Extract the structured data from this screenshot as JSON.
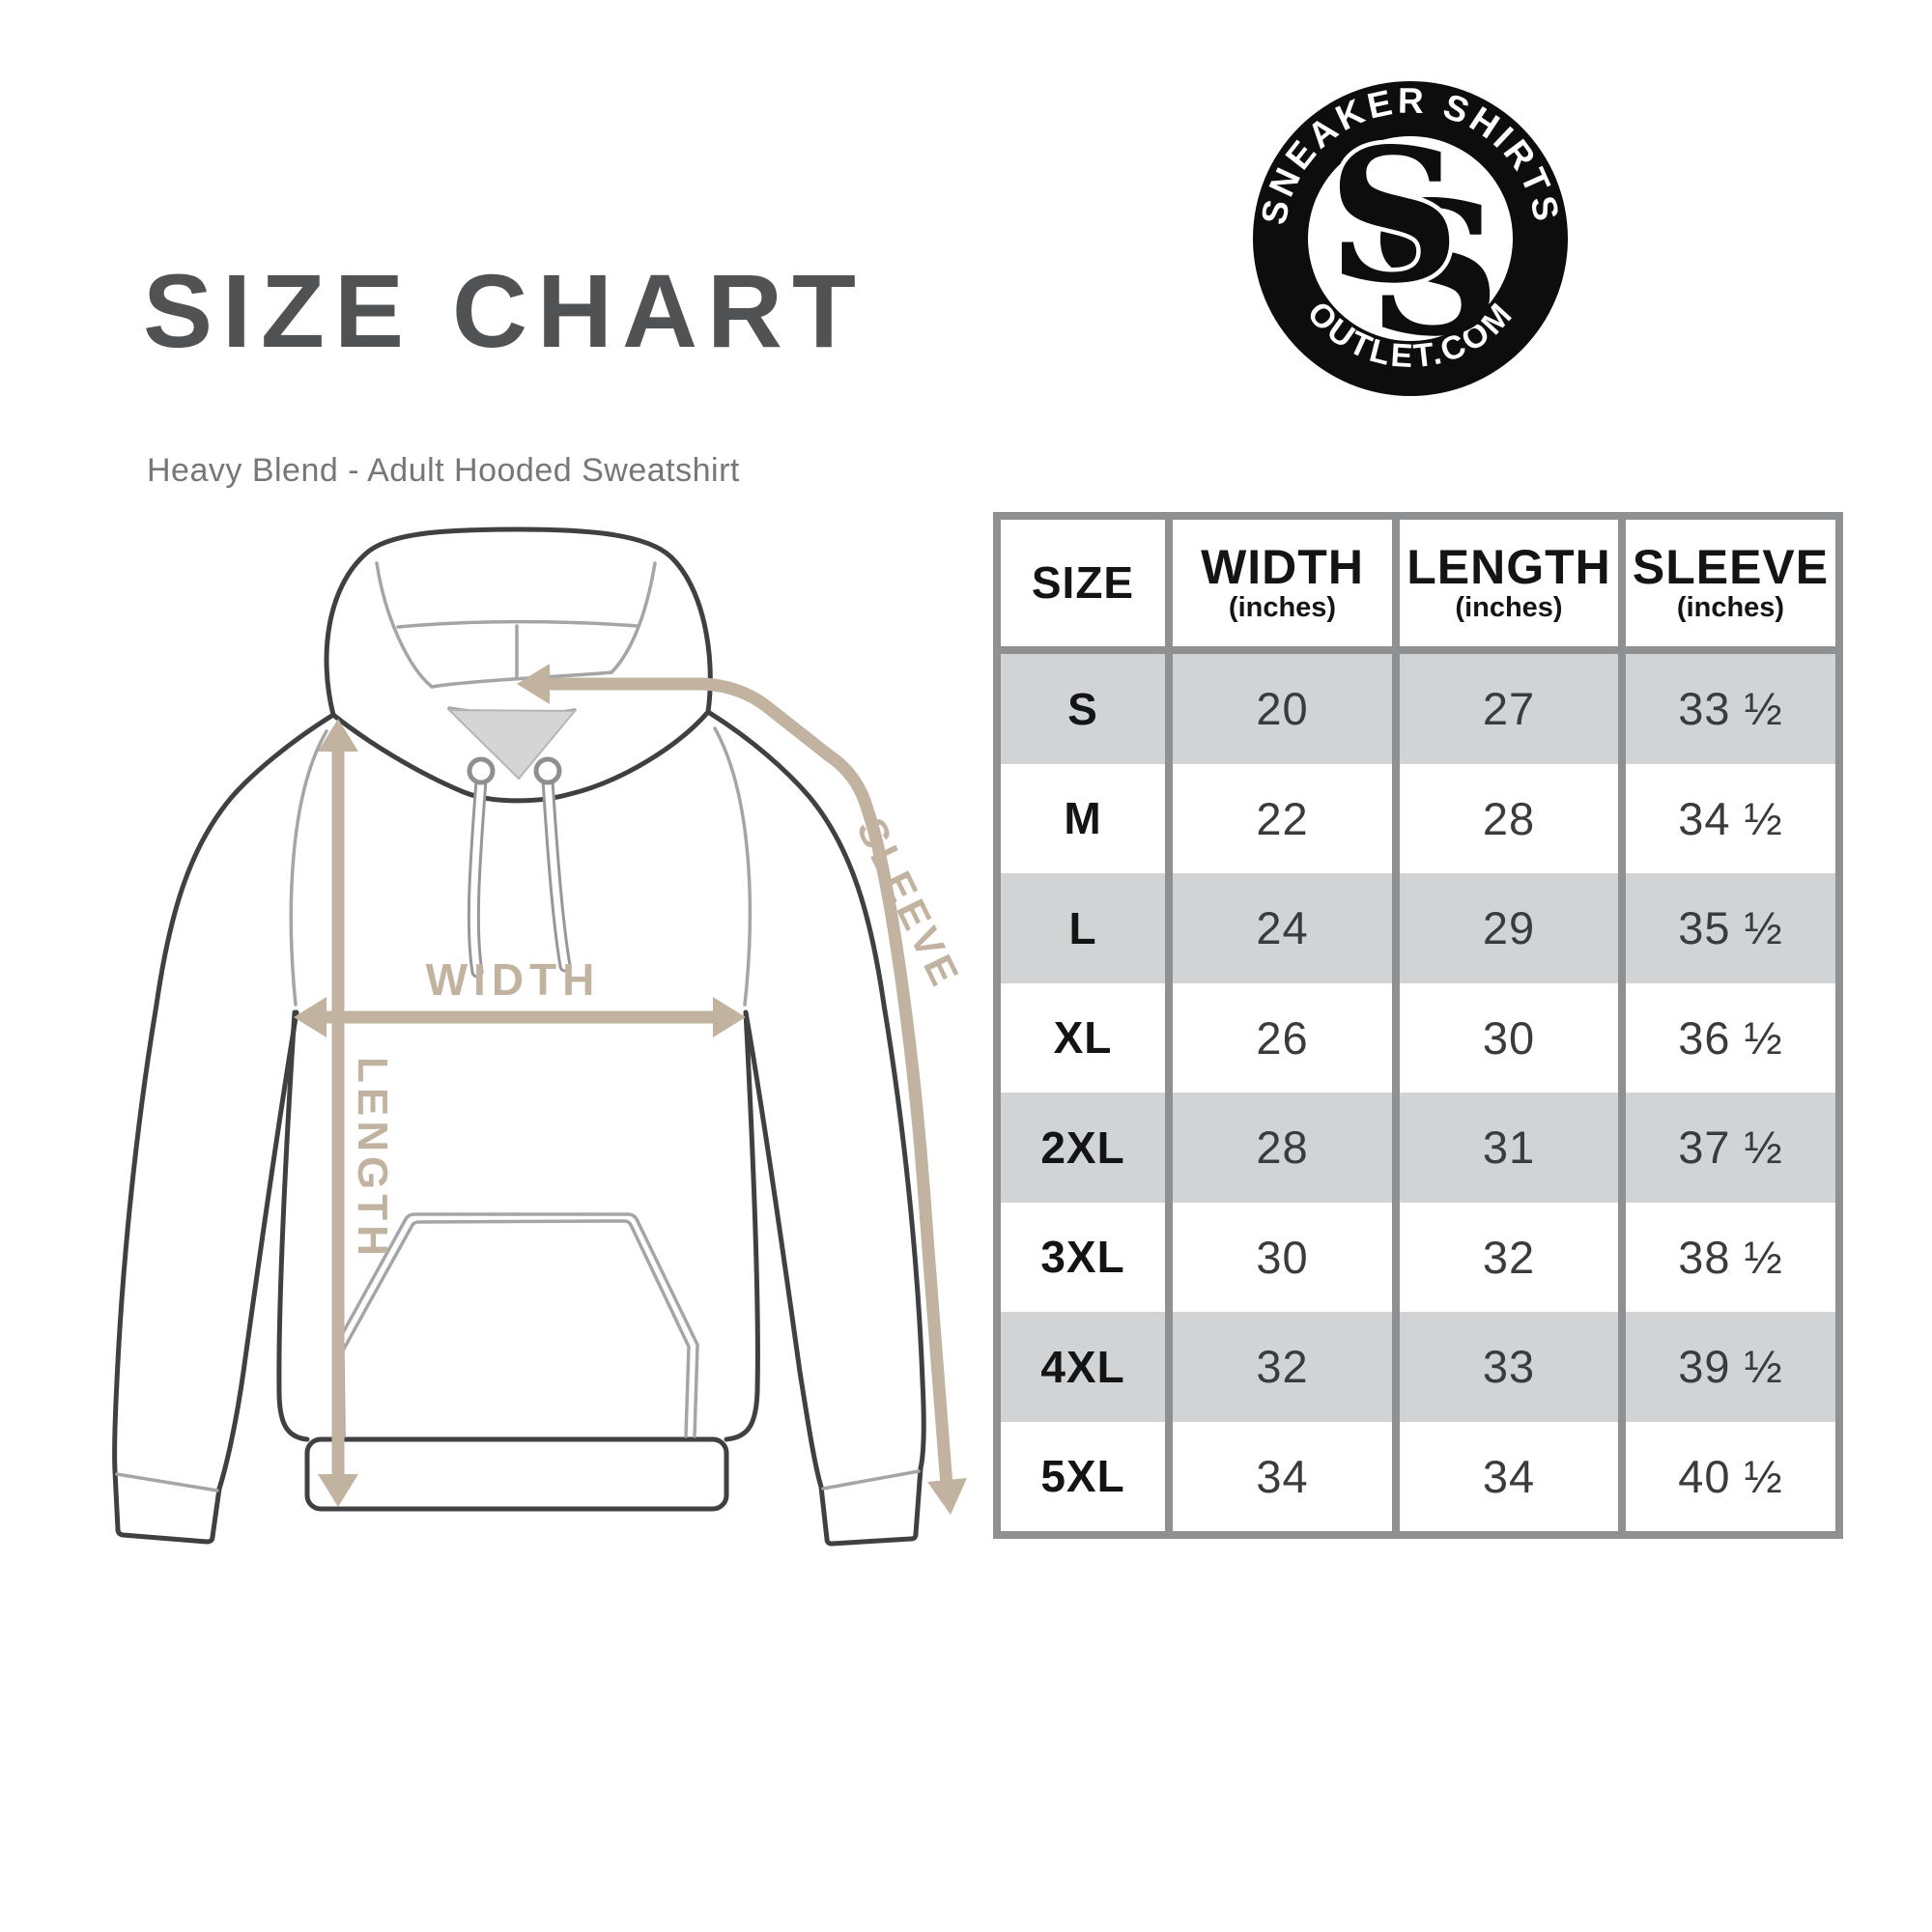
{
  "header": {
    "title": "SIZE CHART",
    "subtitle": "Heavy Blend - Adult Hooded Sweatshirt"
  },
  "logo": {
    "arc_top": "SNEAKER SHIRTS",
    "arc_bottom": "OUTLET.COM",
    "monogram_letter_1": "S",
    "monogram_letter_2": "S"
  },
  "diagram": {
    "arrow_color": "#c2b3a0",
    "labels": {
      "width": "WIDTH",
      "length": "LENGTH",
      "sleeve": "SLEEVE"
    }
  },
  "size_table": {
    "border_color": "#8e9092",
    "alt_row_color": "#d2d3d4",
    "columns": [
      {
        "label": "SIZE",
        "sub": ""
      },
      {
        "label": "WIDTH",
        "sub": "(inches)"
      },
      {
        "label": "LENGTH",
        "sub": "(inches)"
      },
      {
        "label": "SLEEVE",
        "sub": "(inches)"
      }
    ],
    "rows": [
      {
        "size": "S",
        "width": "20",
        "length": "27",
        "sleeve": "33 ½"
      },
      {
        "size": "M",
        "width": "22",
        "length": "28",
        "sleeve": "34 ½"
      },
      {
        "size": "L",
        "width": "24",
        "length": "29",
        "sleeve": "35 ½"
      },
      {
        "size": "XL",
        "width": "26",
        "length": "30",
        "sleeve": "36 ½"
      },
      {
        "size": "2XL",
        "width": "28",
        "length": "31",
        "sleeve": "37 ½"
      },
      {
        "size": "3XL",
        "width": "30",
        "length": "32",
        "sleeve": "38 ½"
      },
      {
        "size": "4XL",
        "width": "32",
        "length": "33",
        "sleeve": "39 ½"
      },
      {
        "size": "5XL",
        "width": "34",
        "length": "34",
        "sleeve": "40 ½"
      }
    ]
  },
  "chart_data": {
    "type": "table",
    "title": "SIZE CHART",
    "subtitle": "Heavy Blend - Adult Hooded Sweatshirt",
    "columns": [
      "SIZE",
      "WIDTH (inches)",
      "LENGTH (inches)",
      "SLEEVE (inches)"
    ],
    "rows": [
      [
        "S",
        20,
        27,
        "33 ½"
      ],
      [
        "M",
        22,
        28,
        "34 ½"
      ],
      [
        "L",
        24,
        29,
        "35 ½"
      ],
      [
        "XL",
        26,
        30,
        "36 ½"
      ],
      [
        "2XL",
        28,
        31,
        "37 ½"
      ],
      [
        "3XL",
        30,
        32,
        "38 ½"
      ],
      [
        "4XL",
        32,
        33,
        "39 ½"
      ],
      [
        "5XL",
        34,
        34,
        "40 ½"
      ]
    ]
  }
}
